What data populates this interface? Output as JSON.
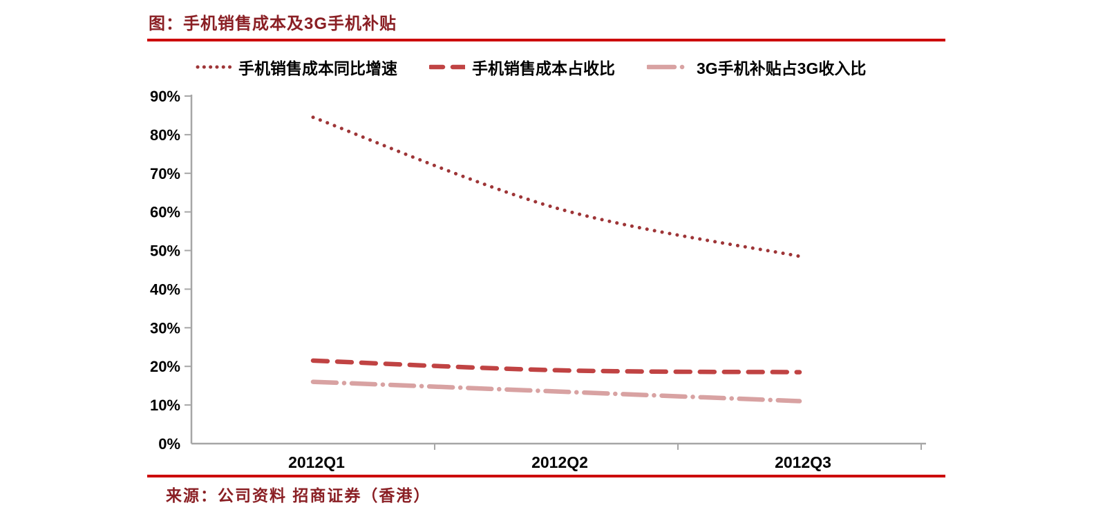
{
  "title": "图：手机销售成本及3G手机补贴",
  "source": "来源：公司资料 招商证券（香港）",
  "colors": {
    "rule": "#cc0000",
    "title_text": "#8a1f24",
    "axis": "#a6a6a6",
    "tick_label": "#000000",
    "series_dotted": "#9e3537",
    "series_dashed": "#c04343",
    "series_dashdot": "#d8a2a2"
  },
  "chart_data": {
    "type": "line",
    "title": "图：手机销售成本及3G手机补贴",
    "categories": [
      "2012Q1",
      "2012Q2",
      "2012Q3"
    ],
    "series": [
      {
        "name": "手机销售成本同比增速",
        "values": [
          84.5,
          61,
          48.5
        ],
        "color": "#9e3537",
        "style": "dotted"
      },
      {
        "name": "手机销售成本占收比",
        "values": [
          21.5,
          19,
          18.5
        ],
        "color": "#c04343",
        "style": "dashed"
      },
      {
        "name": "3G手机补贴占3G收入比",
        "values": [
          16,
          13.5,
          11
        ],
        "color": "#d8a2a2",
        "style": "dashdot"
      }
    ],
    "ylim": [
      0,
      90
    ],
    "ytick_step": 10,
    "ytick_labels": [
      "0%",
      "10%",
      "20%",
      "30%",
      "40%",
      "50%",
      "60%",
      "70%",
      "80%",
      "90%"
    ],
    "xlabel": "",
    "ylabel": "",
    "grid": false,
    "legend_position": "top"
  }
}
